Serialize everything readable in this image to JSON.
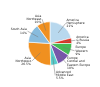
{
  "chart_data": {
    "type": "pie",
    "categories": [
      "America\nHemisphere",
      "America\n& Russia",
      "Europe\nWestern",
      "Europe\nCentral and\nEastern Europe",
      "Advanced\nMiddle East",
      "Asia\nNorthwest",
      "South Asia",
      "Asia\nNortheast"
    ],
    "values": [
      21,
      4,
      9,
      10,
      5.5,
      26.5,
      14,
      10
    ],
    "value_labels": [
      "21%",
      "4%",
      "9%",
      "10%",
      "5.5%",
      "26.5%",
      "14%",
      "10%"
    ],
    "data_labels": true,
    "colors": [
      "#b8d8ee",
      "#e03020",
      "#44bb55",
      "#7755aa",
      "#55cccc",
      "#f09020",
      "#88bbdd",
      "#f09020"
    ]
  }
}
